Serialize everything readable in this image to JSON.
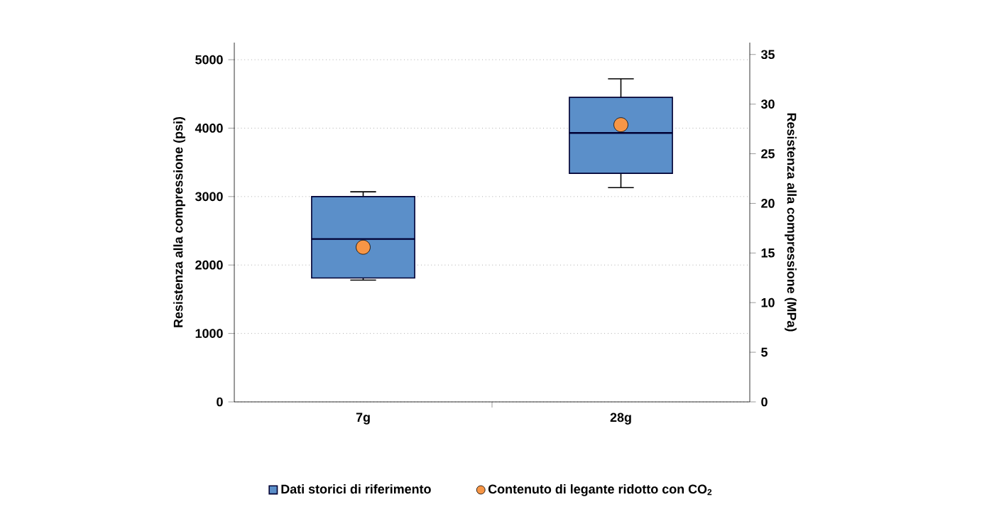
{
  "chart_data": {
    "type": "box",
    "categories": [
      "7g",
      "28g"
    ],
    "ylabel": "Resistenza alla compressione (psi)",
    "y2label": "Resistenza alla compressione (MPa)",
    "ylim": [
      0,
      5250
    ],
    "yticks": [
      0,
      1000,
      2000,
      3000,
      4000,
      5000
    ],
    "y2lim": [
      0,
      36.2
    ],
    "y2ticks": [
      0,
      5,
      10,
      15,
      20,
      25,
      30,
      35
    ],
    "grid": "y",
    "legend": "bottom",
    "series": [
      {
        "name": "Dati storici di riferimento",
        "color": "#5b8fc9",
        "boxes": [
          {
            "low": 1780,
            "q1": 1810,
            "median": 2380,
            "q3": 3000,
            "high": 3070
          },
          {
            "low": 3130,
            "q1": 3340,
            "median": 3930,
            "q3": 4450,
            "high": 4720
          }
        ]
      },
      {
        "name": "Contenuto di legante ridotto con CO$_{2}$",
        "type": "scatter",
        "color": "#f79646",
        "marker": "circle",
        "x": [
          "7g",
          "28g"
        ],
        "values": [
          2260,
          4050
        ]
      }
    ]
  }
}
